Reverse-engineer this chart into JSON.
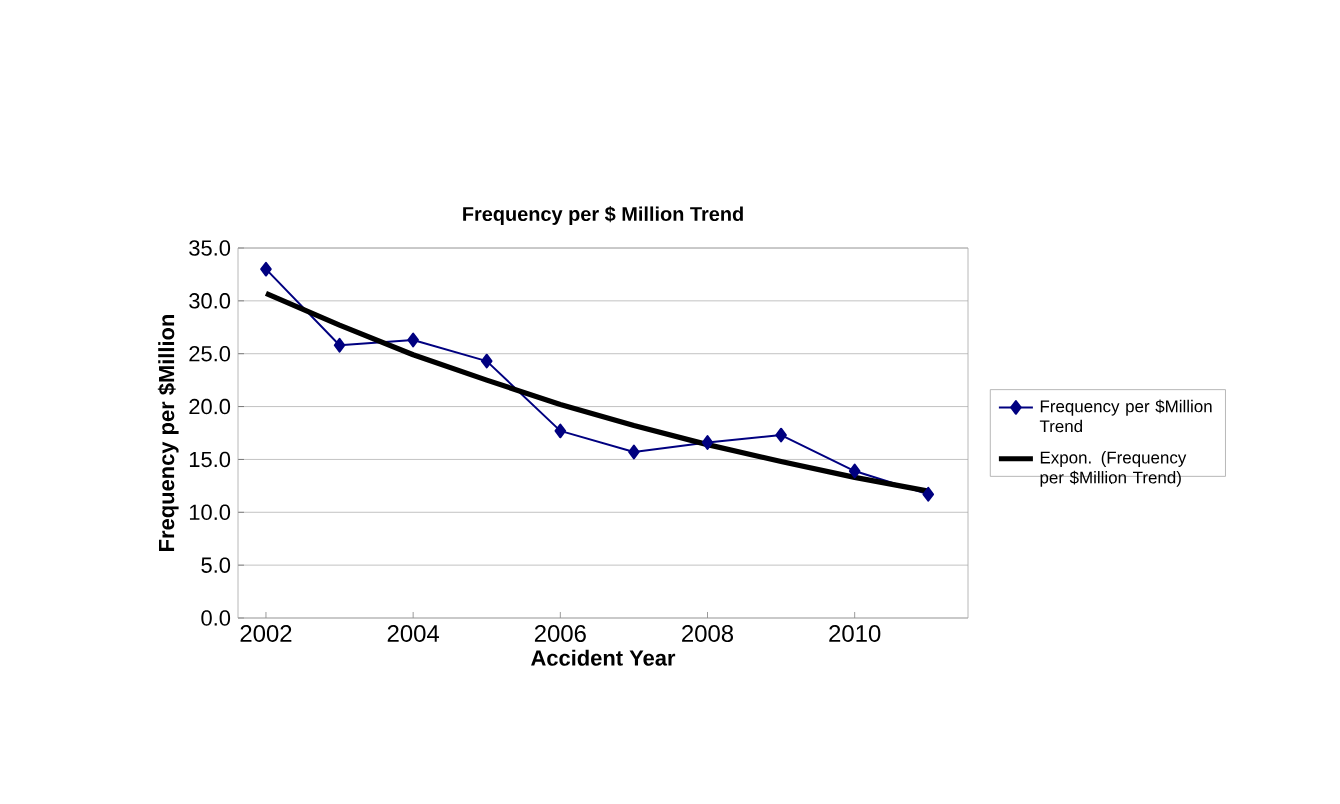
{
  "chart_data": {
    "type": "line",
    "title": "Frequency per $ Million Trend",
    "xlabel": "Accident Year",
    "ylabel": "Frequency per $Million",
    "xlim": [
      2001.62,
      2011.54
    ],
    "xticks": [
      2002,
      2004,
      2006,
      2008,
      2010
    ],
    "ylim": [
      0,
      35
    ],
    "yticks": [
      {
        "value": 0,
        "label": "0.0"
      },
      {
        "value": 5,
        "label": "5.0"
      },
      {
        "value": 10,
        "label": "10.0"
      },
      {
        "value": 15,
        "label": "15.0"
      },
      {
        "value": 20,
        "label": "20.0"
      },
      {
        "value": 25,
        "label": "25.0"
      },
      {
        "value": 30,
        "label": "30.0"
      },
      {
        "value": 35,
        "label": "35.0"
      }
    ],
    "grid": "y",
    "legend": "right",
    "line_style": "solid",
    "series": [
      {
        "name": "Frequency per $Million Trend",
        "color": "#000080",
        "marker": "diamond",
        "x": [
          2002,
          2003,
          2004,
          2005,
          2006,
          2007,
          2008,
          2009,
          2010,
          2011
        ],
        "values": [
          33.0,
          25.8,
          26.3,
          24.3,
          17.7,
          15.7,
          16.6,
          17.3,
          13.9,
          11.7
        ]
      },
      {
        "type": "line",
        "name": "Expon. (Frequency per $Million Trend)",
        "color": "#000000",
        "marker": "none",
        "x": [
          2002,
          2003,
          2004,
          2005,
          2006,
          2007,
          2008,
          2009,
          2010,
          2011
        ],
        "values": [
          30.7,
          27.7,
          24.9,
          22.5,
          20.2,
          18.2,
          16.4,
          14.8,
          13.3,
          12.0
        ]
      }
    ]
  }
}
